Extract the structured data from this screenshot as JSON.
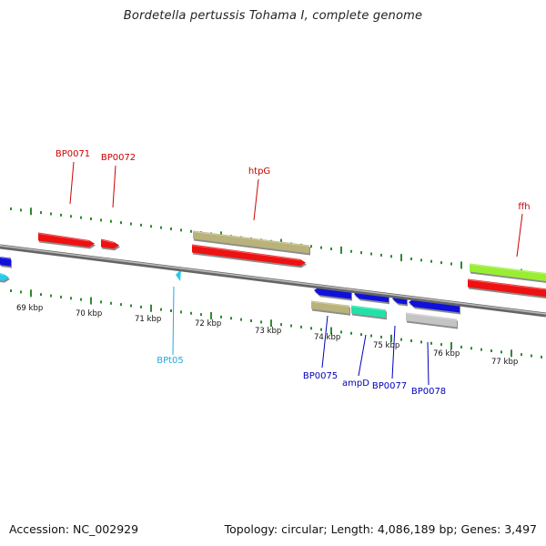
{
  "title": "Bordetella pertussis Tohama I, complete genome",
  "footer": {
    "accession": "Accession: NC_002929",
    "summary": "Topology: circular; Length: 4,086,189 bp; Genes: 3,497"
  },
  "colors": {
    "backbone": "#8a8a8a",
    "tick": "#2e8b2e",
    "red": "#ee1111",
    "khaki": "#b9b27a",
    "blue": "#1010dd",
    "teal": "#22e0a8",
    "grey": "#c4c4c4",
    "lime": "#99ee33",
    "cyan": "#22ccee"
  },
  "ticks": [
    "69 kbp",
    "70 kbp",
    "71 kbp",
    "72 kbp",
    "73 kbp",
    "74 kbp",
    "75 kbp",
    "76 kbp",
    "77 kbp"
  ],
  "gene_labels": [
    "BP0071",
    "BP0072",
    "htpG",
    "ffh",
    "BPt05",
    "BP0075",
    "ampD",
    "BP0077",
    "BP0078"
  ]
}
